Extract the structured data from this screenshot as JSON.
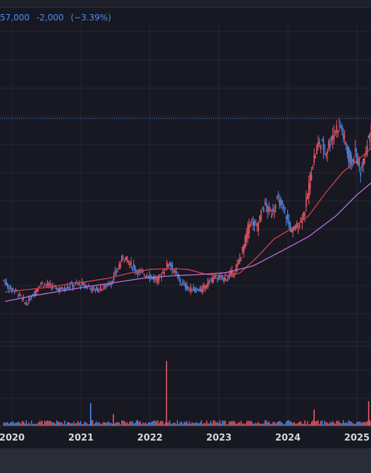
{
  "quote": {
    "price": "57,000",
    "change": "-2,000",
    "change_pct": "(−3.39%)",
    "color": "#4d8ef7"
  },
  "colors": {
    "up": "#ef5a6a",
    "down": "#4d8ef7",
    "ma_short": "#d8404c",
    "ma_long": "#c070e0",
    "grid": "#262833",
    "price_line": "#4d8ef7"
  },
  "chart_data": {
    "type": "candlestick",
    "x_ticks": [
      "2020",
      "2021",
      "2022",
      "2023",
      "2024",
      "2025"
    ],
    "reference_price": 57000,
    "price_ylim": [
      8000,
      78000
    ],
    "ohlc_close_path": [
      {
        "t": 2019.88,
        "c": 22000
      },
      {
        "t": 2019.95,
        "c": 20500
      },
      {
        "t": 2020.05,
        "c": 19800
      },
      {
        "t": 2020.12,
        "c": 18600
      },
      {
        "t": 2020.2,
        "c": 16800
      },
      {
        "t": 2020.3,
        "c": 19000
      },
      {
        "t": 2020.42,
        "c": 21500
      },
      {
        "t": 2020.55,
        "c": 20800
      },
      {
        "t": 2020.7,
        "c": 20000
      },
      {
        "t": 2020.85,
        "c": 21000
      },
      {
        "t": 2021.0,
        "c": 21300
      },
      {
        "t": 2021.1,
        "c": 20700
      },
      {
        "t": 2021.2,
        "c": 20000
      },
      {
        "t": 2021.35,
        "c": 20600
      },
      {
        "t": 2021.45,
        "c": 22000
      },
      {
        "t": 2021.55,
        "c": 25200
      },
      {
        "t": 2021.62,
        "c": 27500
      },
      {
        "t": 2021.7,
        "c": 25800
      },
      {
        "t": 2021.8,
        "c": 24300
      },
      {
        "t": 2021.9,
        "c": 23500
      },
      {
        "t": 2022.0,
        "c": 23000
      },
      {
        "t": 2022.1,
        "c": 22000
      },
      {
        "t": 2022.2,
        "c": 24200
      },
      {
        "t": 2022.27,
        "c": 26000
      },
      {
        "t": 2022.35,
        "c": 24000
      },
      {
        "t": 2022.45,
        "c": 21500
      },
      {
        "t": 2022.55,
        "c": 20300
      },
      {
        "t": 2022.65,
        "c": 20000
      },
      {
        "t": 2022.75,
        "c": 19900
      },
      {
        "t": 2022.85,
        "c": 21800
      },
      {
        "t": 2022.95,
        "c": 22800
      },
      {
        "t": 2023.05,
        "c": 22300
      },
      {
        "t": 2023.15,
        "c": 23000
      },
      {
        "t": 2023.25,
        "c": 24500
      },
      {
        "t": 2023.35,
        "c": 29000
      },
      {
        "t": 2023.45,
        "c": 35000
      },
      {
        "t": 2023.55,
        "c": 33500
      },
      {
        "t": 2023.65,
        "c": 38500
      },
      {
        "t": 2023.75,
        "c": 36500
      },
      {
        "t": 2023.85,
        "c": 39500
      },
      {
        "t": 2023.95,
        "c": 37000
      },
      {
        "t": 2024.05,
        "c": 32500
      },
      {
        "t": 2024.15,
        "c": 34000
      },
      {
        "t": 2024.25,
        "c": 37500
      },
      {
        "t": 2024.35,
        "c": 47000
      },
      {
        "t": 2024.45,
        "c": 52000
      },
      {
        "t": 2024.55,
        "c": 50000
      },
      {
        "t": 2024.65,
        "c": 53500
      },
      {
        "t": 2024.75,
        "c": 56000
      },
      {
        "t": 2024.82,
        "c": 52000
      },
      {
        "t": 2024.9,
        "c": 47500
      },
      {
        "t": 2024.97,
        "c": 49500
      },
      {
        "t": 2025.05,
        "c": 45500
      },
      {
        "t": 2025.12,
        "c": 50000
      },
      {
        "t": 2025.18,
        "c": 54000
      },
      {
        "t": 2025.22,
        "c": 57500
      },
      {
        "t": 2025.24,
        "c": 57000
      }
    ],
    "moving_averages": [
      {
        "name": "ma_short",
        "points": [
          {
            "t": 2019.9,
            "c": 19500
          },
          {
            "t": 2020.2,
            "c": 20000
          },
          {
            "t": 2020.5,
            "c": 20500
          },
          {
            "t": 2020.8,
            "c": 21200
          },
          {
            "t": 2021.1,
            "c": 21800
          },
          {
            "t": 2021.4,
            "c": 22500
          },
          {
            "t": 2021.7,
            "c": 23600
          },
          {
            "t": 2022.0,
            "c": 24400
          },
          {
            "t": 2022.3,
            "c": 24600
          },
          {
            "t": 2022.55,
            "c": 24400
          },
          {
            "t": 2022.8,
            "c": 23400
          },
          {
            "t": 2023.05,
            "c": 23000
          },
          {
            "t": 2023.3,
            "c": 23600
          },
          {
            "t": 2023.55,
            "c": 27000
          },
          {
            "t": 2023.8,
            "c": 31000
          },
          {
            "t": 2024.05,
            "c": 33200
          },
          {
            "t": 2024.3,
            "c": 36000
          },
          {
            "t": 2024.55,
            "c": 41000
          },
          {
            "t": 2024.8,
            "c": 45500
          },
          {
            "t": 2025.05,
            "c": 48500
          },
          {
            "t": 2025.24,
            "c": 51000
          }
        ]
      },
      {
        "name": "ma_long",
        "points": [
          {
            "t": 2019.9,
            "c": 17500
          },
          {
            "t": 2020.3,
            "c": 18700
          },
          {
            "t": 2020.7,
            "c": 19700
          },
          {
            "t": 2021.1,
            "c": 20700
          },
          {
            "t": 2021.5,
            "c": 21600
          },
          {
            "t": 2021.9,
            "c": 22500
          },
          {
            "t": 2022.3,
            "c": 23000
          },
          {
            "t": 2022.7,
            "c": 23300
          },
          {
            "t": 2023.1,
            "c": 23700
          },
          {
            "t": 2023.5,
            "c": 25200
          },
          {
            "t": 2023.9,
            "c": 28300
          },
          {
            "t": 2024.3,
            "c": 31500
          },
          {
            "t": 2024.7,
            "c": 36000
          },
          {
            "t": 2025.0,
            "c": 40500
          },
          {
            "t": 2025.24,
            "c": 43500
          }
        ]
      }
    ],
    "volume_spikes": [
      {
        "t": 2021.14,
        "v": 0.35,
        "dir": "down"
      },
      {
        "t": 2021.47,
        "v": 0.18,
        "dir": "up"
      },
      {
        "t": 2022.24,
        "v": 1.0,
        "dir": "up"
      },
      {
        "t": 2024.38,
        "v": 0.25,
        "dir": "up"
      },
      {
        "t": 2025.17,
        "v": 0.38,
        "dir": "up"
      },
      {
        "t": 2025.23,
        "v": 0.15,
        "dir": "down"
      }
    ]
  }
}
